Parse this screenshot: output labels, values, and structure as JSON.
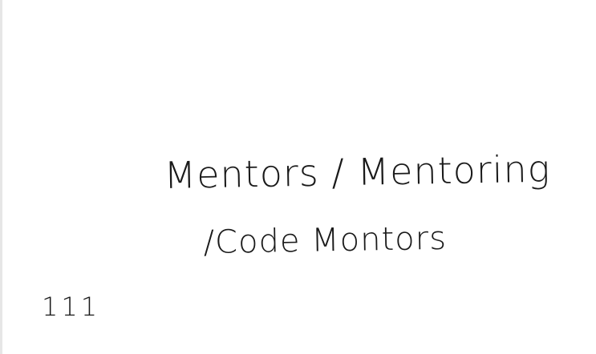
{
  "card": {
    "line1": "Mentors / Mentoring",
    "line2": "/Code Montors",
    "number": "111"
  }
}
